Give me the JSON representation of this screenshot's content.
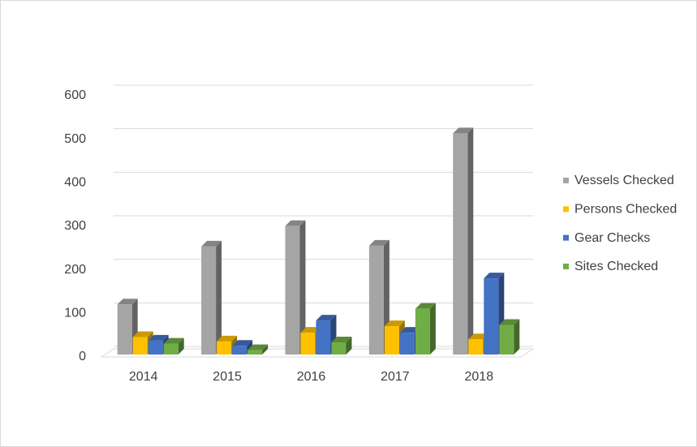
{
  "chart_data": {
    "type": "bar3d",
    "categories": [
      "2014",
      "2015",
      "2016",
      "2017",
      "2018"
    ],
    "series": [
      {
        "name": "Vessels Checked",
        "color": "#a5a5a5",
        "values": [
          115,
          248,
          295,
          250,
          508
        ]
      },
      {
        "name": "Persons Checked",
        "color": "#ffc000",
        "values": [
          40,
          30,
          50,
          65,
          35
        ]
      },
      {
        "name": "Gear Checks",
        "color": "#4472c4",
        "values": [
          32,
          20,
          78,
          50,
          175
        ]
      },
      {
        "name": "Sites Checked",
        "color": "#70ad47",
        "values": [
          25,
          10,
          28,
          105,
          68
        ]
      }
    ],
    "ylim": [
      0,
      600
    ],
    "yticks": [
      0,
      100,
      200,
      300,
      400,
      500,
      600
    ],
    "grid": true,
    "legend": "right"
  }
}
